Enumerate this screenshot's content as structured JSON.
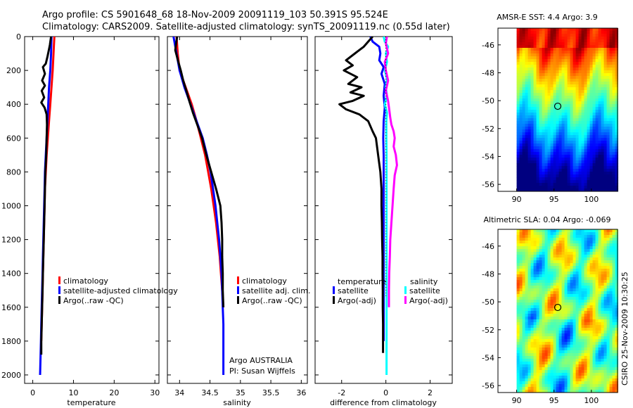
{
  "figure": {
    "title_line1": "Argo profile: CS 5901648_68 18-Nov-2009 20091119_103 50.391S 95.524E",
    "title_line2": "Climatology: CARS2009. Satellite-adjusted climatology: synTS_20091119.nc (0.55d later)",
    "credit": "CSIRO 25-Nov-2009 10:30:25",
    "argo_note_line1": "Argo AUSTRALIA",
    "argo_note_line2": "PI: Susan Wijffels"
  },
  "colors": {
    "red": "#ff0000",
    "blue": "#0000ff",
    "black": "#000000",
    "cyan": "#00ffff",
    "magenta": "#ff00ff"
  },
  "chart_data": [
    {
      "id": "temperature",
      "type": "line",
      "xlabel": "temperature",
      "ylabel": "",
      "xlim": [
        -2,
        31
      ],
      "ylim": [
        2050,
        0
      ],
      "xticks": [
        0,
        10,
        20,
        30
      ],
      "yticks": [
        0,
        200,
        400,
        600,
        800,
        1000,
        1200,
        1400,
        1600,
        1800,
        2000
      ],
      "series": [
        {
          "name": "climatology",
          "color": "red",
          "points": [
            [
              5.3,
              0
            ],
            [
              5.1,
              100
            ],
            [
              4.9,
              200
            ],
            [
              4.6,
              300
            ],
            [
              4.3,
              400
            ],
            [
              4.0,
              500
            ],
            [
              3.7,
              600
            ],
            [
              3.4,
              700
            ],
            [
              3.2,
              800
            ],
            [
              3.0,
              900
            ],
            [
              2.9,
              1000
            ],
            [
              2.8,
              1100
            ],
            [
              2.7,
              1200
            ],
            [
              2.6,
              1300
            ],
            [
              2.5,
              1400
            ],
            [
              2.4,
              1500
            ],
            [
              2.3,
              1600
            ],
            [
              2.2,
              1700
            ],
            [
              2.1,
              1800
            ]
          ]
        },
        {
          "name": "satellite-adjusted climatology",
          "color": "blue",
          "points": [
            [
              4.6,
              0
            ],
            [
              4.5,
              100
            ],
            [
              4.3,
              200
            ],
            [
              4.0,
              300
            ],
            [
              3.8,
              400
            ],
            [
              3.6,
              500
            ],
            [
              3.4,
              600
            ],
            [
              3.2,
              700
            ],
            [
              3.0,
              800
            ],
            [
              2.9,
              900
            ],
            [
              2.8,
              1000
            ],
            [
              2.7,
              1100
            ],
            [
              2.6,
              1200
            ],
            [
              2.5,
              1300
            ],
            [
              2.4,
              1400
            ],
            [
              2.3,
              1500
            ],
            [
              2.2,
              1600
            ],
            [
              2.1,
              1700
            ],
            [
              2.0,
              1800
            ],
            [
              1.9,
              1900
            ],
            [
              1.8,
              2000
            ]
          ]
        },
        {
          "name": "Argo(..raw -QC)",
          "color": "black",
          "points": [
            [
              4.5,
              0
            ],
            [
              4.2,
              50
            ],
            [
              3.6,
              120
            ],
            [
              3.2,
              160
            ],
            [
              2.5,
              180
            ],
            [
              3.0,
              220
            ],
            [
              2.3,
              260
            ],
            [
              3.0,
              290
            ],
            [
              2.2,
              320
            ],
            [
              2.8,
              360
            ],
            [
              2.1,
              390
            ],
            [
              2.9,
              420
            ],
            [
              3.4,
              460
            ],
            [
              3.5,
              520
            ],
            [
              3.4,
              600
            ],
            [
              3.3,
              700
            ],
            [
              3.1,
              800
            ],
            [
              3.0,
              900
            ],
            [
              2.9,
              1000
            ],
            [
              2.8,
              1100
            ],
            [
              2.7,
              1200
            ],
            [
              2.6,
              1300
            ],
            [
              2.5,
              1400
            ],
            [
              2.4,
              1500
            ],
            [
              2.3,
              1600
            ],
            [
              2.2,
              1700
            ],
            [
              2.1,
              1800
            ],
            [
              2.1,
              1880
            ]
          ]
        }
      ]
    },
    {
      "id": "salinity",
      "type": "line",
      "xlabel": "salinity",
      "ylabel": "",
      "xlim": [
        33.8,
        36.1
      ],
      "ylim": [
        2050,
        0
      ],
      "xticks": [
        34,
        34.5,
        35,
        35.5,
        36
      ],
      "series": [
        {
          "name": "climatology",
          "color": "red",
          "points": [
            [
              33.95,
              0
            ],
            [
              33.97,
              100
            ],
            [
              34.0,
              200
            ],
            [
              34.1,
              300
            ],
            [
              34.2,
              400
            ],
            [
              34.28,
              500
            ],
            [
              34.35,
              600
            ],
            [
              34.42,
              700
            ],
            [
              34.47,
              800
            ],
            [
              34.52,
              900
            ],
            [
              34.56,
              1000
            ],
            [
              34.6,
              1100
            ],
            [
              34.63,
              1200
            ],
            [
              34.66,
              1300
            ],
            [
              34.68,
              1400
            ],
            [
              34.7,
              1500
            ],
            [
              34.72,
              1600
            ]
          ]
        },
        {
          "name": "satellite adj. clim.",
          "color": "blue",
          "points": [
            [
              33.9,
              0
            ],
            [
              33.95,
              100
            ],
            [
              34.0,
              200
            ],
            [
              34.08,
              300
            ],
            [
              34.18,
              400
            ],
            [
              34.28,
              500
            ],
            [
              34.38,
              600
            ],
            [
              34.45,
              700
            ],
            [
              34.51,
              800
            ],
            [
              34.55,
              900
            ],
            [
              34.59,
              1000
            ],
            [
              34.62,
              1100
            ],
            [
              34.65,
              1200
            ],
            [
              34.67,
              1300
            ],
            [
              34.69,
              1400
            ],
            [
              34.7,
              1500
            ],
            [
              34.71,
              1600
            ],
            [
              34.72,
              1700
            ],
            [
              34.72,
              1800
            ],
            [
              34.72,
              1900
            ],
            [
              34.72,
              2000
            ]
          ]
        },
        {
          "name": "Argo(..raw -QC)",
          "color": "black",
          "points": [
            [
              33.96,
              0
            ],
            [
              33.93,
              80
            ],
            [
              33.98,
              150
            ],
            [
              34.02,
              200
            ],
            [
              34.06,
              260
            ],
            [
              34.12,
              330
            ],
            [
              34.16,
              380
            ],
            [
              34.22,
              450
            ],
            [
              34.3,
              530
            ],
            [
              34.37,
              600
            ],
            [
              34.44,
              700
            ],
            [
              34.52,
              800
            ],
            [
              34.6,
              900
            ],
            [
              34.67,
              1000
            ],
            [
              34.69,
              1100
            ],
            [
              34.7,
              1200
            ],
            [
              34.7,
              1300
            ],
            [
              34.71,
              1400
            ],
            [
              34.71,
              1500
            ],
            [
              34.72,
              1600
            ]
          ]
        }
      ]
    },
    {
      "id": "difference",
      "type": "line",
      "xlabel": "difference from climatology",
      "ylabel": "",
      "xlim": [
        -3.2,
        3.0
      ],
      "ylim": [
        2050,
        0
      ],
      "xticks": [
        -2,
        0,
        2
      ],
      "legend_temperature_title": "temperature",
      "legend_salinity_title": "salinity",
      "series": [
        {
          "name": "satellite",
          "group": "temperature",
          "color": "blue",
          "points": [
            [
              -0.7,
              0
            ],
            [
              -0.6,
              30
            ],
            [
              -0.3,
              60
            ],
            [
              -0.25,
              100
            ],
            [
              -0.3,
              140
            ],
            [
              -0.1,
              180
            ],
            [
              -0.2,
              220
            ],
            [
              -0.05,
              280
            ],
            [
              -0.1,
              350
            ],
            [
              -0.05,
              420
            ],
            [
              -0.1,
              500
            ],
            [
              -0.12,
              600
            ],
            [
              -0.1,
              700
            ],
            [
              -0.1,
              800
            ],
            [
              -0.1,
              900
            ],
            [
              -0.1,
              1000
            ],
            [
              -0.1,
              1100
            ],
            [
              -0.1,
              1200
            ],
            [
              -0.1,
              1300
            ],
            [
              -0.1,
              1400
            ],
            [
              -0.1,
              1500
            ],
            [
              -0.1,
              1600
            ],
            [
              -0.1,
              1700
            ],
            [
              -0.1,
              1800
            ]
          ]
        },
        {
          "name": "satellite",
          "group": "salinity",
          "color": "cyan",
          "points": [
            [
              -0.1,
              0
            ],
            [
              -0.05,
              30
            ],
            [
              0.1,
              60
            ],
            [
              0.0,
              100
            ],
            [
              0.05,
              150
            ],
            [
              -0.05,
              200
            ],
            [
              0.05,
              250
            ],
            [
              0.0,
              300
            ],
            [
              0.05,
              350
            ],
            [
              -0.05,
              400
            ],
            [
              0.05,
              450
            ],
            [
              0.02,
              500
            ],
            [
              0.02,
              600
            ],
            [
              0.03,
              700
            ],
            [
              0.03,
              800
            ],
            [
              0.03,
              900
            ],
            [
              0.03,
              1000
            ],
            [
              0.03,
              1100
            ],
            [
              0.03,
              1200
            ],
            [
              0.03,
              1300
            ],
            [
              0.03,
              1400
            ],
            [
              0.03,
              1500
            ],
            [
              0.03,
              1600
            ],
            [
              0.03,
              1700
            ],
            [
              0.03,
              1800
            ],
            [
              0.03,
              1900
            ],
            [
              0.03,
              2000
            ]
          ]
        },
        {
          "name": "Argo(-adj)",
          "group": "temperature",
          "color": "black",
          "points": [
            [
              -0.6,
              0
            ],
            [
              -1.0,
              60
            ],
            [
              -1.4,
              100
            ],
            [
              -1.8,
              140
            ],
            [
              -1.5,
              170
            ],
            [
              -1.9,
              200
            ],
            [
              -1.3,
              240
            ],
            [
              -1.7,
              280
            ],
            [
              -1.1,
              300
            ],
            [
              -1.6,
              330
            ],
            [
              -1.0,
              350
            ],
            [
              -1.5,
              380
            ],
            [
              -2.1,
              400
            ],
            [
              -1.8,
              430
            ],
            [
              -1.2,
              460
            ],
            [
              -0.8,
              500
            ],
            [
              -0.6,
              560
            ],
            [
              -0.45,
              600
            ],
            [
              -0.35,
              700
            ],
            [
              -0.25,
              800
            ],
            [
              -0.2,
              900
            ],
            [
              -0.2,
              1000
            ],
            [
              -0.18,
              1100
            ],
            [
              -0.17,
              1200
            ],
            [
              -0.15,
              1300
            ],
            [
              -0.15,
              1400
            ],
            [
              -0.14,
              1500
            ],
            [
              -0.14,
              1600
            ],
            [
              -0.13,
              1700
            ],
            [
              -0.13,
              1800
            ],
            [
              -0.13,
              1870
            ]
          ]
        },
        {
          "name": "Argo(-adj)",
          "group": "salinity",
          "color": "magenta",
          "points": [
            [
              0.05,
              0
            ],
            [
              0.0,
              40
            ],
            [
              0.05,
              70
            ],
            [
              0.1,
              100
            ],
            [
              -0.05,
              150
            ],
            [
              0.0,
              200
            ],
            [
              0.1,
              260
            ],
            [
              0.0,
              320
            ],
            [
              0.1,
              380
            ],
            [
              0.15,
              430
            ],
            [
              0.2,
              480
            ],
            [
              0.25,
              520
            ],
            [
              0.35,
              560
            ],
            [
              0.4,
              600
            ],
            [
              0.35,
              650
            ],
            [
              0.45,
              700
            ],
            [
              0.5,
              760
            ],
            [
              0.4,
              820
            ],
            [
              0.35,
              900
            ],
            [
              0.3,
              1000
            ],
            [
              0.25,
              1100
            ],
            [
              0.2,
              1200
            ],
            [
              0.18,
              1300
            ],
            [
              0.15,
              1400
            ],
            [
              0.14,
              1500
            ],
            [
              0.14,
              1600
            ]
          ]
        }
      ]
    },
    {
      "id": "sst_map",
      "type": "heatmap",
      "title": "AMSR-E SST: 4.4 Argo: 3.9",
      "xlim": [
        87.5,
        103.5
      ],
      "ylim": [
        -56.5,
        -44.8
      ],
      "xticks": [
        90,
        95,
        100
      ],
      "yticks": [
        -46,
        -48,
        -50,
        -52,
        -54,
        -56
      ],
      "float_position": [
        95.5,
        -50.4
      ],
      "data_start_lon": 90
    },
    {
      "id": "sla_map",
      "type": "heatmap",
      "title": "Altimetric SLA: 0.04 Argo: -0.069",
      "xlim": [
        87.5,
        103.5
      ],
      "ylim": [
        -56.5,
        -44.8
      ],
      "xticks": [
        90,
        95,
        100
      ],
      "yticks": [
        -46,
        -48,
        -50,
        -52,
        -54,
        -56
      ],
      "float_position": [
        95.5,
        -50.4
      ],
      "data_start_lon": 90
    }
  ]
}
